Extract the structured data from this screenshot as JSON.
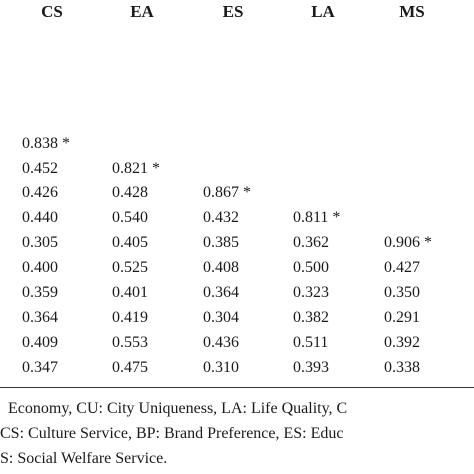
{
  "table": {
    "header": [
      "CS",
      "EA",
      "ES",
      "LA",
      "MS"
    ],
    "rows": [
      [
        "0.838 *"
      ],
      [
        "0.452",
        "0.821 *"
      ],
      [
        "0.426",
        "0.428",
        "0.867 *"
      ],
      [
        "0.440",
        "0.540",
        "0.432",
        "0.811 *"
      ],
      [
        "0.305",
        "0.405",
        "0.385",
        "0.362",
        "0.906 *"
      ],
      [
        "0.400",
        "0.525",
        "0.408",
        "0.500",
        "0.427"
      ],
      [
        "0.359",
        "0.401",
        "0.364",
        "0.323",
        "0.350"
      ],
      [
        "0.364",
        "0.419",
        "0.304",
        "0.382",
        "0.291"
      ],
      [
        "0.409",
        "0.553",
        "0.436",
        "0.511",
        "0.392"
      ],
      [
        "0.347",
        "0.475",
        "0.310",
        "0.393",
        "0.338"
      ]
    ]
  },
  "footnotes": [
    "Economy, CU: City Uniqueness, LA: Life Quality, C",
    "CS: Culture Service, BP: Brand Preference, ES: Educ",
    "S: Social Welfare Service."
  ]
}
